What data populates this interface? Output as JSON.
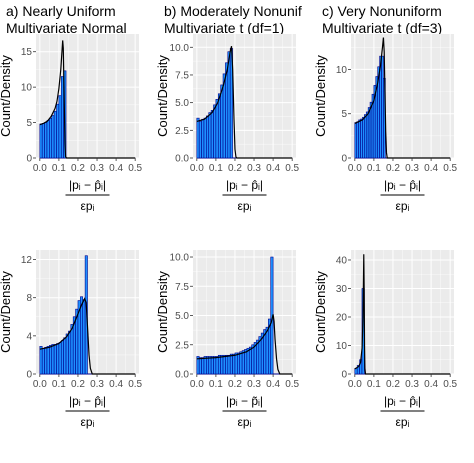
{
  "figure": {
    "column_titles": [
      [
        "a) Nearly Uniform",
        "Multivariate Normal"
      ],
      [
        "b) Moderately Nonunif",
        "Multivariate t (df=1)"
      ],
      [
        "c) Very Nonuniform",
        "Multivariate t (df=3)"
      ]
    ],
    "y_axis_label": "Count/Density",
    "x_axis_numerator": "|pᵢ − p̂ᵢ|",
    "x_axis_numerator_bottom": "|pᵢ − p̃ᵢ|",
    "x_axis_denominator": "εpᵢ"
  },
  "colors": {
    "panel_background": "#ebebeb",
    "gridline": "#ffffff",
    "bar_fill": "#1e90ff",
    "bar_outline": "#00008b",
    "density_line": "#000000",
    "baseline": "#00008b"
  },
  "chart_data": [
    {
      "type": "bar",
      "row": 0,
      "col": 0,
      "xlim": [
        -0.02,
        0.52
      ],
      "ylim": [
        0,
        17.5
      ],
      "xticks": [
        "0.0",
        "0.1",
        "0.2",
        "0.3",
        "0.4",
        "0.5"
      ],
      "yticks": [
        "0",
        "5",
        "10",
        "15"
      ],
      "bin_width": 0.0125,
      "bin_start": 0,
      "values": [
        4.8,
        4.9,
        5.0,
        5.3,
        5.6,
        6.0,
        6.6,
        7.6,
        8.8,
        11.5,
        12.3
      ],
      "density": [
        [
          0,
          4.7
        ],
        [
          0.02,
          4.9
        ],
        [
          0.04,
          5.2
        ],
        [
          0.06,
          5.9
        ],
        [
          0.08,
          7.0
        ],
        [
          0.09,
          8.0
        ],
        [
          0.1,
          9.8
        ],
        [
          0.11,
          12.5
        ],
        [
          0.12,
          16.6
        ],
        [
          0.123,
          15.5
        ],
        [
          0.128,
          8.0
        ],
        [
          0.132,
          2.0
        ],
        [
          0.135,
          0.2
        ],
        [
          0.14,
          0
        ],
        [
          0.5,
          0
        ]
      ],
      "grid": true
    },
    {
      "type": "bar",
      "row": 0,
      "col": 1,
      "xlim": [
        -0.02,
        0.52
      ],
      "ylim": [
        0,
        11.2
      ],
      "xticks": [
        "0.0",
        "0.1",
        "0.2",
        "0.3",
        "0.4",
        "0.5"
      ],
      "yticks": [
        "0.0",
        "2.5",
        "5.0",
        "7.5",
        "10.0"
      ],
      "bin_width": 0.0125,
      "bin_start": 0,
      "values": [
        3.6,
        3.3,
        3.5,
        3.6,
        3.8,
        4.1,
        4.3,
        4.8,
        5.3,
        5.8,
        6.6,
        7.6,
        8.6,
        9.6,
        9.9
      ],
      "density": [
        [
          0,
          3.3
        ],
        [
          0.04,
          3.5
        ],
        [
          0.08,
          4.1
        ],
        [
          0.11,
          5.0
        ],
        [
          0.14,
          6.6
        ],
        [
          0.16,
          8.0
        ],
        [
          0.175,
          9.6
        ],
        [
          0.182,
          10.1
        ],
        [
          0.188,
          8.0
        ],
        [
          0.195,
          3.5
        ],
        [
          0.2,
          0.8
        ],
        [
          0.205,
          0.1
        ],
        [
          0.21,
          0
        ],
        [
          0.5,
          0
        ]
      ],
      "grid": true
    },
    {
      "type": "bar",
      "row": 0,
      "col": 2,
      "xlim": [
        -0.02,
        0.52
      ],
      "ylim": [
        0,
        14.0
      ],
      "xticks": [
        "0.0",
        "0.1",
        "0.2",
        "0.3",
        "0.4",
        "0.5"
      ],
      "yticks": [
        "0",
        "5",
        "10"
      ],
      "bin_width": 0.01,
      "bin_start": 0,
      "values": [
        4.0,
        4.1,
        4.3,
        4.4,
        4.6,
        4.9,
        5.2,
        5.7,
        6.3,
        7.2,
        8.2,
        9.2,
        10.3,
        11.5,
        11.5,
        9.0
      ],
      "density": [
        [
          0,
          3.9
        ],
        [
          0.04,
          4.3
        ],
        [
          0.07,
          5.0
        ],
        [
          0.1,
          6.5
        ],
        [
          0.12,
          8.5
        ],
        [
          0.135,
          10.5
        ],
        [
          0.145,
          12.5
        ],
        [
          0.15,
          13.6
        ],
        [
          0.154,
          12.0
        ],
        [
          0.158,
          7.5
        ],
        [
          0.162,
          3.0
        ],
        [
          0.166,
          0.6
        ],
        [
          0.17,
          0
        ],
        [
          0.5,
          0
        ]
      ],
      "grid": true
    },
    {
      "type": "bar",
      "row": 1,
      "col": 0,
      "xlim": [
        -0.02,
        0.52
      ],
      "ylim": [
        0,
        13.0
      ],
      "xticks": [
        "0.0",
        "0.1",
        "0.2",
        "0.3",
        "0.4",
        "0.5"
      ],
      "yticks": [
        "0",
        "4",
        "8",
        "12"
      ],
      "bin_width": 0.0125,
      "bin_start": 0,
      "values": [
        2.9,
        2.7,
        2.8,
        2.9,
        3.0,
        3.1,
        3.1,
        3.2,
        3.3,
        3.5,
        3.8,
        4.2,
        4.5,
        5.2,
        6.0,
        6.8,
        7.7,
        8.1,
        7.8,
        12.4
      ],
      "density": [
        [
          0,
          2.6
        ],
        [
          0.05,
          2.8
        ],
        [
          0.1,
          3.2
        ],
        [
          0.14,
          3.9
        ],
        [
          0.17,
          4.8
        ],
        [
          0.2,
          6.3
        ],
        [
          0.22,
          7.3
        ],
        [
          0.235,
          7.9
        ],
        [
          0.243,
          7.5
        ],
        [
          0.25,
          5.0
        ],
        [
          0.258,
          2.0
        ],
        [
          0.265,
          0.6
        ],
        [
          0.275,
          0
        ],
        [
          0.5,
          0
        ]
      ],
      "grid": true
    },
    {
      "type": "bar",
      "row": 1,
      "col": 1,
      "xlim": [
        -0.02,
        0.52
      ],
      "ylim": [
        0,
        10.6
      ],
      "xticks": [
        "0.0",
        "0.1",
        "0.2",
        "0.3",
        "0.4",
        "0.5"
      ],
      "yticks": [
        "0.0",
        "2.5",
        "5.0",
        "7.5",
        "10.0"
      ],
      "bin_width": 0.0125,
      "bin_start": 0,
      "values": [
        1.5,
        1.4,
        1.4,
        1.5,
        1.5,
        1.5,
        1.5,
        1.5,
        1.5,
        1.6,
        1.6,
        1.6,
        1.6,
        1.6,
        1.7,
        1.7,
        1.8,
        1.8,
        1.9,
        2.0,
        2.1,
        2.2,
        2.3,
        2.5,
        2.7,
        2.9,
        3.2,
        3.5,
        3.8,
        4.0,
        4.7,
        10.0
      ],
      "density": [
        [
          0,
          1.3
        ],
        [
          0.1,
          1.4
        ],
        [
          0.2,
          1.6
        ],
        [
          0.26,
          1.9
        ],
        [
          0.3,
          2.3
        ],
        [
          0.34,
          3.0
        ],
        [
          0.37,
          3.7
        ],
        [
          0.39,
          4.4
        ],
        [
          0.4,
          5.1
        ],
        [
          0.405,
          4.5
        ],
        [
          0.41,
          3.0
        ],
        [
          0.418,
          1.3
        ],
        [
          0.425,
          0.4
        ],
        [
          0.435,
          0
        ],
        [
          0.5,
          0
        ]
      ],
      "grid": true
    },
    {
      "type": "bar",
      "row": 1,
      "col": 2,
      "xlim": [
        -0.02,
        0.52
      ],
      "ylim": [
        0,
        43.5
      ],
      "xticks": [
        "0.0",
        "0.1",
        "0.2",
        "0.3",
        "0.4",
        "0.5"
      ],
      "yticks": [
        "0",
        "10",
        "20",
        "30",
        "40"
      ],
      "bin_width": 0.0125,
      "bin_start": 0,
      "values": [
        2.0,
        3.0,
        5.0,
        30.0
      ],
      "density": [
        [
          0,
          1.8
        ],
        [
          0.02,
          2.6
        ],
        [
          0.03,
          4.0
        ],
        [
          0.038,
          9.0
        ],
        [
          0.043,
          20.0
        ],
        [
          0.047,
          42.0
        ],
        [
          0.049,
          30.0
        ],
        [
          0.051,
          10.0
        ],
        [
          0.053,
          2.0
        ],
        [
          0.056,
          0
        ],
        [
          0.5,
          0
        ]
      ],
      "grid": true
    }
  ]
}
